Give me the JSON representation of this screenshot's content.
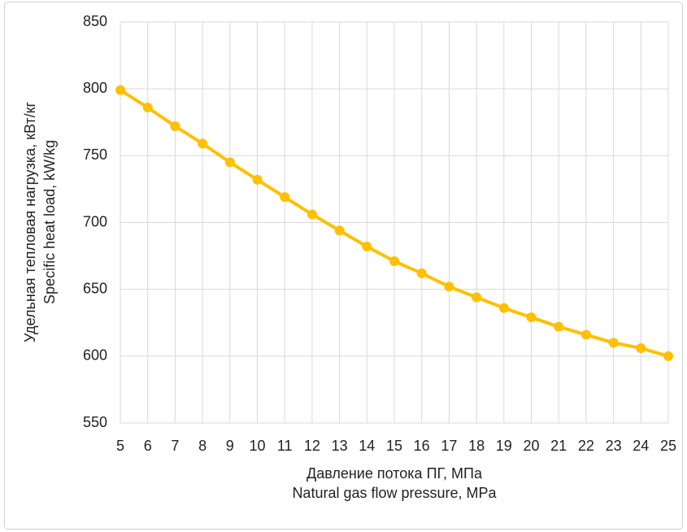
{
  "chart_data": {
    "type": "line",
    "y_label": [
      "Удельная тепловая нагрузка, кВт/кг",
      "Specific heat load, kW/kg"
    ],
    "x_label": [
      "Давление потока ПГ, МПа",
      "Natural gas flow pressure, MPa"
    ],
    "x": [
      5,
      6,
      7,
      8,
      9,
      10,
      11,
      12,
      13,
      14,
      15,
      16,
      17,
      18,
      19,
      20,
      21,
      22,
      23,
      24,
      25
    ],
    "series": [
      {
        "color": "#ffc000",
        "values": [
          799,
          786,
          772,
          759,
          745,
          732,
          719,
          706,
          694,
          682,
          671,
          662,
          652,
          644,
          636,
          629,
          622,
          616,
          610,
          606,
          600
        ]
      }
    ],
    "xlim": [
      5,
      25
    ],
    "xticks": [
      5,
      6,
      7,
      8,
      9,
      10,
      11,
      12,
      13,
      14,
      15,
      16,
      17,
      18,
      19,
      20,
      21,
      22,
      23,
      24,
      25
    ],
    "ylim": [
      550,
      850
    ],
    "yticks": [
      550,
      600,
      650,
      700,
      750,
      800,
      850
    ],
    "grid": true
  }
}
